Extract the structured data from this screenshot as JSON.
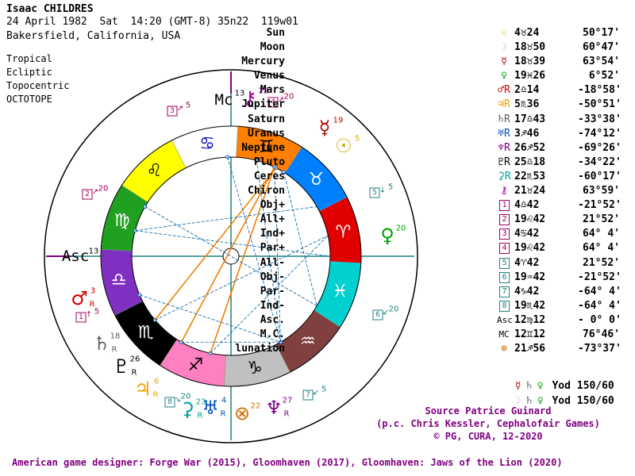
{
  "header": {
    "name": "Isaac CHILDRES",
    "date_line": "24 April 1982  Sat  14:20 (GMT-8) 35n22  119w01",
    "place": "Bakersfield, California, USA"
  },
  "options": [
    "Tropical",
    "Ecliptic",
    "Topocentric",
    "OCTOTOPE"
  ],
  "table": [
    {
      "name": "Sun",
      "glyph": "☉",
      "color": "#d4b000",
      "pos": "4♉24",
      "lat": "50°17'"
    },
    {
      "name": "Moon",
      "glyph": "☽",
      "color": "#c8c8c8",
      "pos": "18♉50",
      "lat": "60°47'"
    },
    {
      "name": "Mercury",
      "glyph": "☿",
      "color": "#b00000",
      "pos": "18♉39",
      "lat": "63°54'"
    },
    {
      "name": "Venus",
      "glyph": "♀",
      "color": "#00a000",
      "pos": "19♓26",
      "lat": "6°52'"
    },
    {
      "name": "Mars",
      "glyph": "♂R",
      "color": "#d00000",
      "pos": "2♎14",
      "lat": "-18°58'"
    },
    {
      "name": "Jupiter",
      "glyph": "♃R",
      "color": "#f0a000",
      "pos": "5♏36",
      "lat": "-50°51'"
    },
    {
      "name": "Saturn",
      "glyph": "♄R",
      "color": "#606060",
      "pos": "17♎43",
      "lat": "-33°38'"
    },
    {
      "name": "Uranus",
      "glyph": "♅R",
      "color": "#0050c0",
      "pos": "3♐46",
      "lat": "-74°12'"
    },
    {
      "name": "Neptune",
      "glyph": "♆R",
      "color": "#800080",
      "pos": "26♐52",
      "lat": "-69°26'"
    },
    {
      "name": "Pluto",
      "glyph": "♇R",
      "color": "#000000",
      "pos": "25♎18",
      "lat": "-34°22'"
    },
    {
      "name": "Ceres",
      "glyph": "⚳R",
      "color": "#00a0a0",
      "pos": "22♏53",
      "lat": "-60°17'"
    },
    {
      "name": "Chiron",
      "glyph": "⚷",
      "color": "#a000a0",
      "pos": "21♉24",
      "lat": "63°59'"
    },
    {
      "name": "Obj+",
      "glyph": "1",
      "color": "#a00060",
      "pos": "4♎42",
      "lat": "-21°52'"
    },
    {
      "name": "All+",
      "glyph": "2",
      "color": "#a00060",
      "pos": "19♌42",
      "lat": "21°52'"
    },
    {
      "name": "Ind+",
      "glyph": "3",
      "color": "#a00060",
      "pos": "4♋42",
      "lat": "64° 4'"
    },
    {
      "name": "Par+",
      "glyph": "4",
      "color": "#a00060",
      "pos": "19♌42",
      "lat": "64° 4'"
    },
    {
      "name": "All-",
      "glyph": "5",
      "color": "#208080",
      "pos": "4♈42",
      "lat": "21°52'"
    },
    {
      "name": "Obj-",
      "glyph": "6",
      "color": "#208080",
      "pos": "19♒42",
      "lat": "-21°52'"
    },
    {
      "name": "Par-",
      "glyph": "7",
      "color": "#208080",
      "pos": "4♑42",
      "lat": "-64° 4'"
    },
    {
      "name": "Ind-",
      "glyph": "8",
      "color": "#208080",
      "pos": "19♏42",
      "lat": "-64° 4'"
    },
    {
      "name": "Asc.",
      "glyph": "Asc",
      "color": "#000000",
      "pos": "12♍12",
      "lat": "- 0° 0'"
    },
    {
      "name": "M.C.",
      "glyph": "MC",
      "color": "#000000",
      "pos": "12♊12",
      "lat": "76°46'"
    },
    {
      "name": "lunation",
      "glyph": "⊗",
      "color": "#d07000",
      "pos": "21♐56",
      "lat": "-73°37'"
    }
  ],
  "yod": [
    {
      "glyphs": [
        {
          "g": "☿",
          "c": "#b00000"
        },
        {
          "g": "♄",
          "c": "#606060"
        },
        {
          "g": "♀",
          "c": "#00a000"
        }
      ],
      "label": "Yod 150/60"
    },
    {
      "glyphs": [
        {
          "g": "☽",
          "c": "#c8c8c8"
        },
        {
          "g": "♄",
          "c": "#606060"
        },
        {
          "g": "♀",
          "c": "#00a000"
        }
      ],
      "label": "Yod 150/60"
    }
  ],
  "source": [
    "Source Patrice Guinard",
    "(p.c. Chris Kessler, Cephalofair Games)",
    "© PG, CURA, 12-2020"
  ],
  "footer": "American game designer: Forge War (2015), Gloomhaven (2017), Gloomhaven: Jaws of the Lion (2020)",
  "wheel": {
    "signs": [
      {
        "g": "♈",
        "c": "#e00000"
      },
      {
        "g": "♉",
        "c": "#0080ff"
      },
      {
        "g": "♊",
        "c": "#ff8000"
      },
      {
        "g": "♋",
        "c": "#ffffff"
      },
      {
        "g": "♌",
        "c": "#ffff00"
      },
      {
        "g": "♍",
        "c": "#20a020"
      },
      {
        "g": "♎",
        "c": "#8030c0"
      },
      {
        "g": "♏",
        "c": "#000000"
      },
      {
        "g": "♐",
        "c": "#ff80c0"
      },
      {
        "g": "♑",
        "c": "#c0c0c0"
      },
      {
        "g": "♒",
        "c": "#804040"
      },
      {
        "g": "♓",
        "c": "#00d0d0"
      }
    ],
    "asc_label": "Asc",
    "asc_num": "13",
    "mc_label": "Mc",
    "mc_num": "13",
    "planets": [
      {
        "g": "☿",
        "c": "#b00000",
        "n": "19",
        "r": ""
      },
      {
        "g": "☉",
        "c": "#d4b000",
        "n": "5",
        "r": ""
      },
      {
        "g": "♀",
        "c": "#00a000",
        "n": "20",
        "r": ""
      },
      {
        "g": "♂",
        "c": "#d00000",
        "n": "3",
        "r": "R"
      },
      {
        "g": "♄",
        "c": "#606060",
        "n": "18",
        "r": "R"
      },
      {
        "g": "♇",
        "c": "#000000",
        "n": "26",
        "r": "R"
      },
      {
        "g": "♃",
        "c": "#f0a000",
        "n": "6",
        "r": "R"
      },
      {
        "g": "♅",
        "c": "#0050c0",
        "n": "4",
        "r": "R"
      },
      {
        "g": "♆",
        "c": "#800080",
        "n": "27",
        "r": "R"
      },
      {
        "g": "⊗",
        "c": "#d07000",
        "n": "22",
        "r": ""
      },
      {
        "g": "⚳",
        "c": "#00a0a0",
        "n": "23",
        "r": "R"
      },
      {
        "g": "⚷",
        "c": "#a000a0",
        "n": "22",
        "r": ""
      }
    ],
    "points": [
      {
        "b": "1",
        "c": "#a00060",
        "n": "5",
        "a": "↑"
      },
      {
        "b": "2",
        "c": "#a00060",
        "n": "20",
        "a": "↗"
      },
      {
        "b": "3",
        "c": "#a00060",
        "n": "5",
        "a": "↗"
      },
      {
        "b": "4",
        "c": "#a00060",
        "n": "20",
        "a": "↗"
      },
      {
        "b": "5",
        "c": "#208080",
        "n": "5",
        "a": "↓"
      },
      {
        "b": "6",
        "c": "#208080",
        "n": "20",
        "a": "↙"
      },
      {
        "b": "7",
        "c": "#208080",
        "n": "5",
        "a": "↙"
      },
      {
        "b": "8",
        "c": "#208080",
        "n": "20",
        "a": "↘"
      }
    ]
  }
}
